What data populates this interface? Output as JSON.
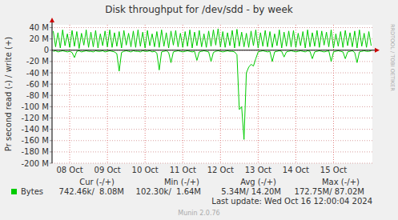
{
  "chart_data": {
    "type": "line",
    "title": "Disk throughput for /dev/sdd - by week",
    "y_label": "Pr second read (-) / write (+)",
    "categories": [
      null,
      null,
      null,
      null,
      null,
      null,
      null,
      "08 Oct",
      null,
      null,
      null,
      null,
      null,
      null,
      null,
      null,
      null,
      null,
      null,
      null,
      null,
      null,
      null,
      "09 Oct",
      null,
      null,
      null,
      null,
      null,
      null,
      null,
      null,
      null,
      null,
      null,
      null,
      null,
      null,
      null,
      "10 Oct",
      null,
      null,
      null,
      null,
      null,
      null,
      null,
      null,
      null,
      null,
      null,
      null,
      null,
      null,
      null,
      "11 Oct",
      null,
      null,
      null,
      null,
      null,
      null,
      null,
      null,
      null,
      null,
      null,
      null,
      null,
      null,
      null,
      "12 Oct",
      null,
      null,
      null,
      null,
      null,
      null,
      null,
      null,
      null,
      null,
      null,
      null,
      null,
      null,
      null,
      "13 Oct",
      null,
      null,
      null,
      null,
      null,
      null,
      null,
      null,
      null,
      null,
      null,
      null,
      null,
      null,
      null,
      "14 Oct",
      null,
      null,
      null,
      null,
      null,
      null,
      null,
      null,
      null,
      null,
      null,
      null,
      null,
      null,
      null,
      "15 Oct",
      null,
      null,
      null,
      null,
      null,
      null,
      null,
      null,
      null,
      null,
      null,
      null,
      null,
      null,
      null,
      null
    ],
    "series": [
      {
        "name": "Bytes",
        "color": "#00cc00",
        "values": [
          34,
          6,
          31,
          4,
          36,
          8,
          29,
          5,
          35,
          7,
          33,
          3,
          30,
          9,
          36,
          5,
          32,
          6,
          35,
          4,
          29,
          8,
          34,
          6,
          36,
          5,
          31,
          7,
          33,
          4,
          35,
          9,
          30,
          6,
          34,
          5,
          36,
          7,
          32,
          4,
          35,
          8,
          29,
          6,
          33,
          5,
          36,
          7,
          31,
          4,
          34,
          9,
          35,
          6,
          30,
          5,
          33,
          7,
          36,
          4,
          32,
          8,
          35,
          6,
          29,
          5,
          34,
          7,
          36,
          9,
          38,
          6,
          33,
          5,
          31,
          8,
          35,
          4,
          37,
          7,
          32,
          6,
          30,
          5,
          34,
          8,
          36,
          4,
          31,
          7,
          35,
          6,
          33,
          5,
          29,
          8,
          36,
          4,
          32,
          7,
          34,
          6,
          35,
          5,
          30,
          8,
          33,
          4,
          36,
          6,
          31,
          7,
          35,
          5,
          34,
          9,
          32,
          6,
          36,
          4,
          29,
          7,
          33,
          5,
          35,
          8,
          31,
          6,
          34,
          4,
          36,
          7,
          30,
          5,
          33,
          8
        ]
      },
      {
        "color": "#00cc00",
        "values": [
          -2,
          -1,
          -3,
          -2,
          -1,
          -2,
          -3,
          -2,
          -4,
          -13,
          -2,
          -1,
          -3,
          -2,
          -1,
          -2,
          -2,
          -3,
          -1,
          -2,
          -2,
          -1,
          -3,
          -2,
          -1,
          -2,
          -3,
          -6,
          -37,
          -4,
          -2,
          -1,
          -2,
          -3,
          -1,
          -2,
          -2,
          -3,
          -1,
          -2,
          -2,
          -1,
          -3,
          -2,
          -5,
          -35,
          -3,
          -2,
          -1,
          -4,
          -22,
          -3,
          -2,
          -1,
          -2,
          -3,
          -2,
          -1,
          -2,
          -3,
          -2,
          -18,
          -3,
          -2,
          -1,
          -2,
          -3,
          -20,
          -4,
          -2,
          -1,
          -2,
          -3,
          -2,
          -1,
          -2,
          -2,
          -3,
          -8,
          -105,
          -100,
          -158,
          -40,
          -30,
          -25,
          -28,
          -15,
          -3,
          -2,
          -1,
          -2,
          -3,
          -2,
          -20,
          -3,
          -2,
          -1,
          -2,
          -12,
          -3,
          -2,
          -1,
          -2,
          -3,
          -2,
          -1,
          -2,
          -3,
          -1,
          -2,
          -15,
          -3,
          -2,
          -1,
          -2,
          -3,
          -2,
          -1,
          -20,
          -3,
          -2,
          -1,
          -2,
          -3,
          -15,
          -3,
          -2,
          -1,
          -4,
          -22,
          -3,
          -2,
          -1,
          -2,
          -2,
          -1
        ]
      }
    ],
    "ylim": [
      -200,
      45
    ],
    "yticks": [
      {
        "value": 40,
        "label": "40 M"
      },
      {
        "value": 20,
        "label": "20 M"
      },
      0,
      {
        "value": -20,
        "label": "-20 M"
      },
      {
        "value": -40,
        "label": "-40 M"
      },
      {
        "value": -60,
        "label": "-60 M"
      },
      {
        "value": -80,
        "label": "-80 M"
      },
      {
        "value": -100,
        "label": "-100 M"
      },
      {
        "value": -120,
        "label": "-120 M"
      },
      {
        "value": -140,
        "label": "-140 M"
      },
      {
        "value": -160,
        "label": "-160 M"
      },
      {
        "value": -180,
        "label": "-180 M"
      },
      {
        "value": -200,
        "label": "-200 M"
      }
    ],
    "grid": true,
    "legend_stats": {
      "headers": [
        "Cur (-/+)",
        "Min (-/+)",
        "Avg (-/+)",
        "Max (-/+)"
      ],
      "values": [
        "742.46k/  8.08M",
        "102.30k/  1.64M",
        "5.34M/ 14.20M",
        "172.75M/ 87.02M"
      ]
    },
    "last_update": "Last update: Wed Oct 16 12:00:04 2024",
    "footer": "Munin 2.0.76",
    "watermark": "RRDTOOL / TOBI OETIKER"
  }
}
